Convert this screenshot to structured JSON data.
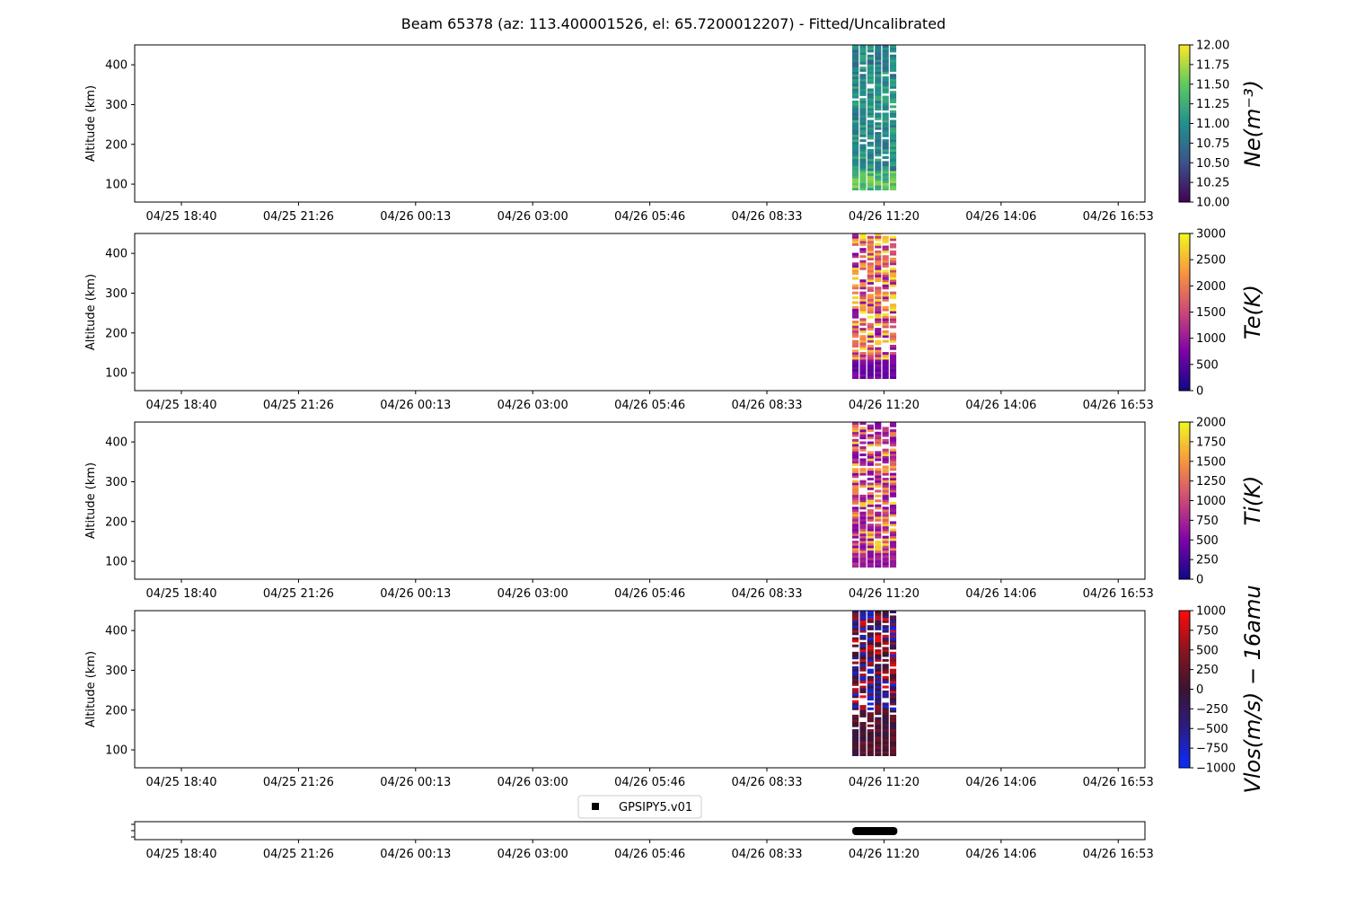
{
  "figure": {
    "title": "Beam 65378 (az: 113.400001526, el: 65.7200012207) - Fitted/Uncalibrated"
  },
  "chart_data": [
    {
      "type": "heatmap",
      "id": "ne",
      "ylabel": "Altitude (km)",
      "ylim": [
        55,
        450
      ],
      "yticks": [
        100,
        200,
        300,
        400
      ],
      "xticks": [
        "04/25 18:40",
        "04/25 21:26",
        "04/26 00:13",
        "04/26 03:00",
        "04/26 05:46",
        "04/26 08:33",
        "04/26 11:20",
        "04/26 14:06",
        "04/26 16:53"
      ],
      "data_time_range": [
        "04/26 10:31",
        "04/26 11:35"
      ],
      "data_alt_range": [
        85,
        450
      ],
      "colorbar": {
        "label": "Ne(m⁻³)",
        "min": 10.0,
        "max": 12.0,
        "ticks": [
          "10.00",
          "10.25",
          "10.50",
          "10.75",
          "11.00",
          "11.25",
          "11.50",
          "11.75",
          "12.00"
        ],
        "colormap": "viridis",
        "colors": [
          "#440154",
          "#3b528b",
          "#21918c",
          "#5ec962",
          "#fde725"
        ]
      }
    },
    {
      "type": "heatmap",
      "id": "te",
      "ylabel": "Altitude (km)",
      "ylim": [
        55,
        450
      ],
      "yticks": [
        100,
        200,
        300,
        400
      ],
      "xticks": [
        "04/25 18:40",
        "04/25 21:26",
        "04/26 00:13",
        "04/26 03:00",
        "04/26 05:46",
        "04/26 08:33",
        "04/26 11:20",
        "04/26 14:06",
        "04/26 16:53"
      ],
      "data_time_range": [
        "04/26 10:31",
        "04/26 11:35"
      ],
      "data_alt_range": [
        85,
        450
      ],
      "colorbar": {
        "label": "Te(K)",
        "min": 0,
        "max": 3000,
        "ticks": [
          "0",
          "500",
          "1000",
          "1500",
          "2000",
          "2500",
          "3000"
        ],
        "colormap": "plasma",
        "colors": [
          "#0d0887",
          "#7e03a8",
          "#cc4778",
          "#f89540",
          "#f0f921"
        ]
      }
    },
    {
      "type": "heatmap",
      "id": "ti",
      "ylabel": "Altitude (km)",
      "ylim": [
        55,
        450
      ],
      "yticks": [
        100,
        200,
        300,
        400
      ],
      "xticks": [
        "04/25 18:40",
        "04/25 21:26",
        "04/26 00:13",
        "04/26 03:00",
        "04/26 05:46",
        "04/26 08:33",
        "04/26 11:20",
        "04/26 14:06",
        "04/26 16:53"
      ],
      "data_time_range": [
        "04/26 10:31",
        "04/26 11:35"
      ],
      "data_alt_range": [
        85,
        450
      ],
      "colorbar": {
        "label": "Ti(K)",
        "min": 0,
        "max": 2000,
        "ticks": [
          "0",
          "250",
          "500",
          "750",
          "1000",
          "1250",
          "1500",
          "1750",
          "2000"
        ],
        "colormap": "plasma",
        "colors": [
          "#0d0887",
          "#7e03a8",
          "#cc4778",
          "#f89540",
          "#f0f921"
        ]
      }
    },
    {
      "type": "heatmap",
      "id": "vlos",
      "ylabel": "Altitude (km)",
      "ylim": [
        55,
        450
      ],
      "yticks": [
        100,
        200,
        300,
        400
      ],
      "xticks": [
        "04/25 18:40",
        "04/25 21:26",
        "04/26 00:13",
        "04/26 03:00",
        "04/26 05:46",
        "04/26 08:33",
        "04/26 11:20",
        "04/26 14:06",
        "04/26 16:53"
      ],
      "data_time_range": [
        "04/26 10:31",
        "04/26 11:35"
      ],
      "data_alt_range": [
        85,
        450
      ],
      "colorbar": {
        "label": "Vlos(m/s) − 16amu",
        "min": -1000,
        "max": 1000,
        "ticks": [
          "−1000",
          "−750",
          "−500",
          "−250",
          "0",
          "250",
          "500",
          "750",
          "1000"
        ],
        "colormap": "diverging blue-dark-red",
        "colors": [
          "#0a2cff",
          "#2b1c86",
          "#3a1430",
          "#8a1420",
          "#ff0a0a"
        ]
      }
    },
    {
      "type": "scatter",
      "id": "timeline",
      "legend": [
        "GPSIPY5.v01"
      ],
      "legend_position": "top-center",
      "xticks": [
        "04/25 18:40",
        "04/25 21:26",
        "04/26 00:13",
        "04/26 03:00",
        "04/26 05:46",
        "04/26 08:33",
        "04/26 11:20",
        "04/26 14:06",
        "04/26 16:53"
      ],
      "data_time_range": [
        "04/26 10:31",
        "04/26 11:35"
      ],
      "marker_color": "#000000"
    }
  ]
}
